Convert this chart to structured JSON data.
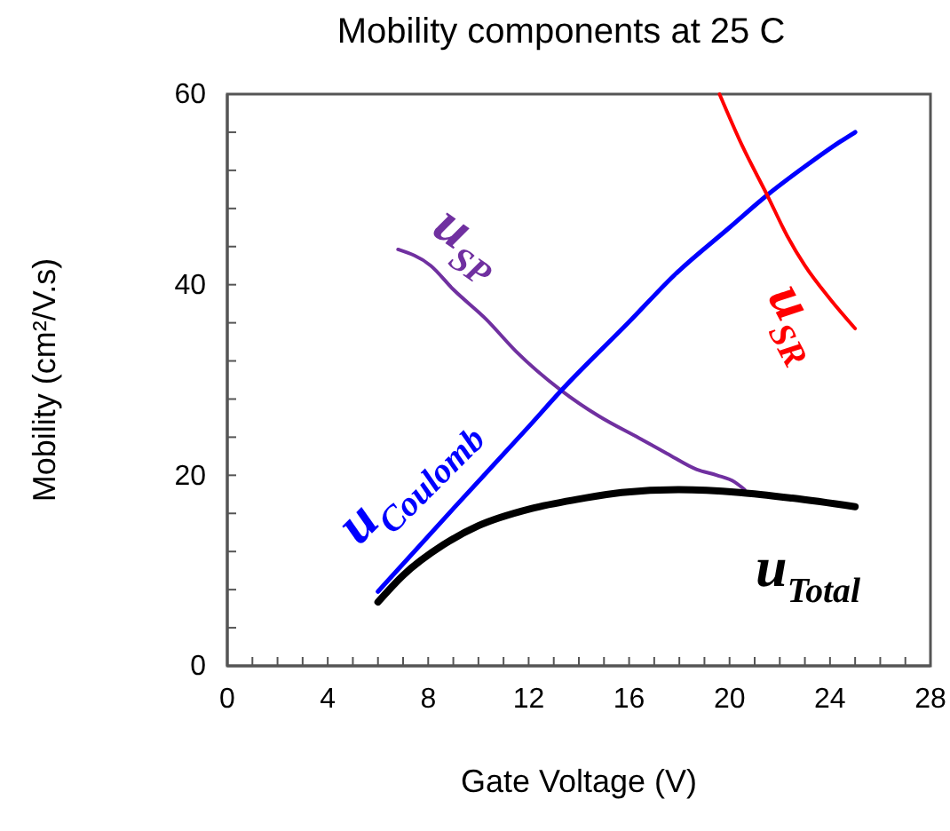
{
  "chart_data": {
    "type": "line",
    "title": "Mobility components at 25 C",
    "xlabel": "Gate Voltage (V)",
    "ylabel": "Mobility (cm²/V.s)",
    "xlim": [
      0,
      28
    ],
    "ylim": [
      0,
      60
    ],
    "xticks": [
      0,
      {
        "value": 1,
        "label": null
      },
      {
        "value": 2,
        "label": null
      },
      {
        "value": 3,
        "label": null
      },
      4,
      {
        "value": 5,
        "label": null
      },
      {
        "value": 6,
        "label": null
      },
      {
        "value": 7,
        "label": null
      },
      8,
      {
        "value": 9,
        "label": null
      },
      {
        "value": 10,
        "label": null
      },
      {
        "value": 11,
        "label": null
      },
      12,
      {
        "value": 13,
        "label": null
      },
      {
        "value": 14,
        "label": null
      },
      {
        "value": 15,
        "label": null
      },
      16,
      {
        "value": 17,
        "label": null
      },
      {
        "value": 18,
        "label": null
      },
      {
        "value": 19,
        "label": null
      },
      20,
      {
        "value": 21,
        "label": null
      },
      {
        "value": 22,
        "label": null
      },
      {
        "value": 23,
        "label": null
      },
      24,
      {
        "value": 25,
        "label": null
      },
      {
        "value": 26,
        "label": null
      },
      {
        "value": 27,
        "label": null
      },
      28
    ],
    "yticks": [
      0,
      {
        "value": 4,
        "label": null
      },
      {
        "value": 8,
        "label": null
      },
      {
        "value": 12,
        "label": null
      },
      {
        "value": 16,
        "label": null
      },
      20,
      {
        "value": 24,
        "label": null
      },
      {
        "value": 28,
        "label": null
      },
      {
        "value": 32,
        "label": null
      },
      {
        "value": 36,
        "label": null
      },
      40,
      {
        "value": 44,
        "label": null
      },
      {
        "value": 48,
        "label": null
      },
      {
        "value": 52,
        "label": null
      },
      {
        "value": 56,
        "label": null
      },
      60
    ],
    "grid": false,
    "legend": false,
    "marker": "none",
    "line_style": "solid",
    "series": [
      {
        "name": "u$_{SP}$",
        "color": "#7030a0",
        "x": [
          6.8,
          8.1,
          9,
          10.3,
          11.5,
          13.3,
          14.8,
          16.4,
          17.5,
          18.7,
          19.5,
          20.2,
          20.6
        ],
        "values": [
          43.7,
          42,
          39.5,
          36.4,
          33,
          28.9,
          26.2,
          23.9,
          22.3,
          20.6,
          20,
          19.3,
          18.5
        ]
      },
      {
        "name": "u$_{Coulomb}$",
        "color": "#0000ff",
        "x": [
          6,
          9,
          12,
          13.3,
          16,
          17.8,
          20,
          21.5,
          23,
          24.4,
          25
        ],
        "values": [
          7.8,
          16.5,
          25.1,
          28.9,
          36.1,
          41,
          46,
          49.4,
          52.4,
          55,
          56
        ]
      },
      {
        "name": "u$_{SR}$",
        "color": "#ff0000",
        "x": [
          19.6,
          20.5,
          21.5,
          22.3,
          23,
          24,
          25
        ],
        "values": [
          60,
          54.6,
          49.4,
          45.1,
          42,
          38.5,
          35.4
        ]
      },
      {
        "name": "u$_{Total}$",
        "color": "#000000",
        "x": [
          6,
          7,
          8.6,
          10,
          12.1,
          14,
          15.7,
          18,
          20.4,
          22.5,
          25
        ],
        "values": [
          6.7,
          9.5,
          12.7,
          14.7,
          16.5,
          17.5,
          18.2,
          18.5,
          18.2,
          17.6,
          16.7
        ]
      }
    ]
  }
}
